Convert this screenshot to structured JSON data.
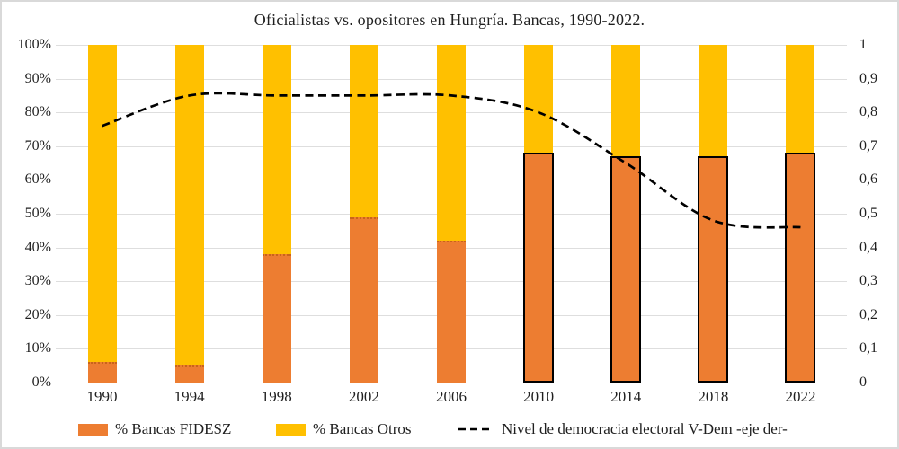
{
  "title": "Oficialistas vs. opositores en Hungría. Bancas, 1990-2022.",
  "colors": {
    "fidesz_orange": "#ED7D31",
    "otros_yellow": "#FFC000",
    "vdem_line": "#000000",
    "grid": "#DEDEDE",
    "text": "#1F1F1F",
    "bar_outline": "#000000",
    "chart_border": "#D9D9D9"
  },
  "axes": {
    "left": {
      "tick_labels": [
        "100%",
        "90%",
        "80%",
        "70%",
        "60%",
        "50%",
        "40%",
        "30%",
        "20%",
        "10%",
        "0%"
      ]
    },
    "right": {
      "tick_labels": [
        "1",
        "0,9",
        "0,8",
        "0,7",
        "0,6",
        "0,5",
        "0,4",
        "0,3",
        "0,2",
        "0,1",
        "0"
      ]
    }
  },
  "legend": {
    "fidesz": "% Bancas FIDESZ",
    "otros": "% Bancas Otros",
    "vdem": "Nivel de democracia electoral V-Dem -eje der-"
  },
  "chart_data": {
    "type": "stacked-bar+line",
    "title": "Oficialistas vs. opositores en Hungría. Bancas, 1990-2022.",
    "categories": [
      "1990",
      "1994",
      "1998",
      "2002",
      "2006",
      "2010",
      "2014",
      "2018",
      "2022"
    ],
    "series": [
      {
        "name": "% Bancas FIDESZ",
        "type": "bar",
        "stack": "bancas",
        "axis": "left",
        "color": "#ED7D31",
        "values": [
          6,
          5,
          38,
          49,
          42,
          68,
          67,
          67,
          68
        ]
      },
      {
        "name": "% Bancas Otros",
        "type": "bar",
        "stack": "bancas",
        "axis": "left",
        "color": "#FFC000",
        "values": [
          94,
          95,
          62,
          51,
          58,
          32,
          33,
          33,
          32
        ]
      },
      {
        "name": "Nivel de democracia electoral V-Dem -eje der-",
        "type": "line",
        "style": "dashed",
        "axis": "right",
        "color": "#000000",
        "values": [
          0.76,
          0.85,
          0.85,
          0.85,
          0.85,
          0.8,
          0.65,
          0.48,
          0.46
        ]
      }
    ],
    "left_axis": {
      "min": 0,
      "max": 100,
      "step": 10,
      "unit": "%"
    },
    "right_axis": {
      "min": 0,
      "max": 1,
      "step": 0.1,
      "decimal_separator": ","
    },
    "grid": "horizontal",
    "legend_position": "bottom",
    "outlined_bars_from_category": "2010"
  }
}
